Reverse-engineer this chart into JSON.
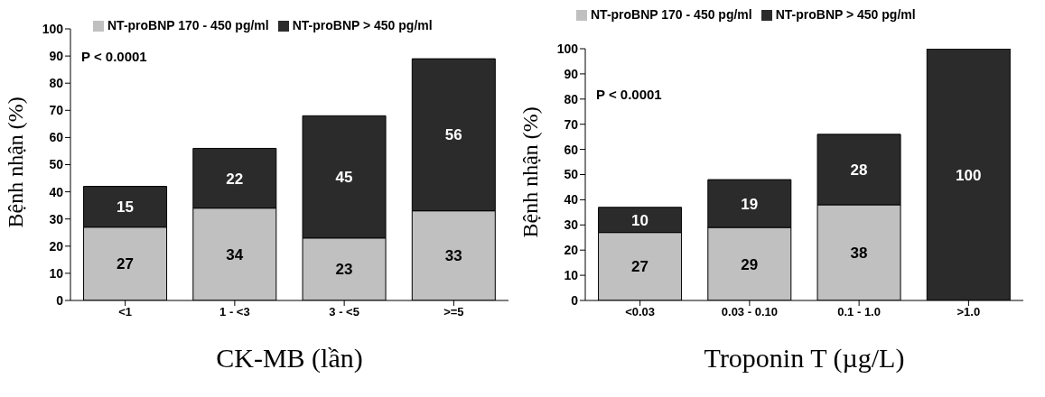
{
  "chart_data": [
    {
      "type": "bar",
      "stacked": true,
      "xlabel": "CK-MB (lần)",
      "ylabel": "Bệnh nhận (%)",
      "categories": [
        "<1",
        "1 - <3",
        "3 - <5",
        ">=5"
      ],
      "ylim": [
        0,
        100
      ],
      "yticks": [
        0,
        10,
        20,
        30,
        40,
        50,
        60,
        70,
        80,
        90,
        100
      ],
      "legend": "top left",
      "annotations": [
        "P < 0.0001"
      ],
      "series": [
        {
          "name": "NT-proBNP 170 - 450 pg/ml",
          "color": "#c0c0c0",
          "values": [
            27,
            34,
            23,
            33
          ],
          "value_labels": [
            "27",
            "34",
            "23",
            "33"
          ]
        },
        {
          "name": "NT-proBNP > 450 pg/ml",
          "color": "#2b2b2b",
          "values": [
            15,
            22,
            45,
            56
          ],
          "value_labels": [
            "15",
            "22",
            "45",
            "56"
          ]
        }
      ]
    },
    {
      "type": "bar",
      "stacked": true,
      "xlabel": "Troponin T (µg/L)",
      "ylabel": "Bệnh nhận (%)",
      "categories": [
        "<0.03",
        "0.03 - 0.10",
        "0.1 - 1.0",
        ">1.0"
      ],
      "ylim": [
        0,
        100
      ],
      "yticks": [
        0,
        10,
        20,
        30,
        40,
        50,
        60,
        70,
        80,
        90,
        100
      ],
      "legend": "top",
      "annotations": [
        "P < 0.0001"
      ],
      "series": [
        {
          "name": "NT-proBNP 170 - 450 pg/ml",
          "color": "#c0c0c0",
          "values": [
            27,
            29,
            38,
            null
          ],
          "value_labels": [
            "27",
            "29",
            "38",
            null
          ]
        },
        {
          "name": "NT-proBNP > 450 pg/ml",
          "color": "#2b2b2b",
          "values": [
            10,
            19,
            28,
            100
          ],
          "value_labels": [
            "10",
            "19",
            "28",
            "100"
          ]
        }
      ]
    }
  ]
}
